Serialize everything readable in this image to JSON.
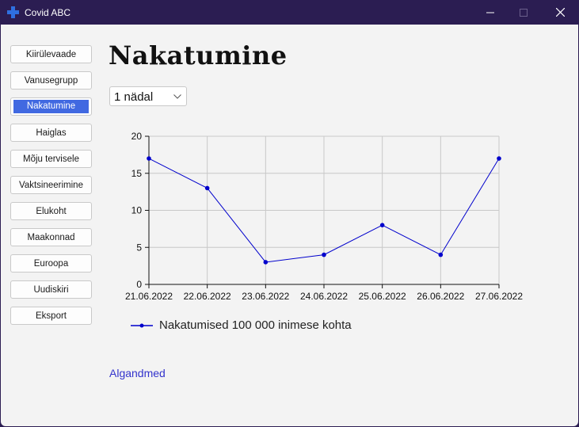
{
  "window": {
    "title": "Covid ABC"
  },
  "nav": {
    "items": [
      {
        "label": "Kiirülevaade"
      },
      {
        "label": "Vanusegrupp"
      },
      {
        "label": "Nakatumine"
      },
      {
        "label": "Haiglas"
      },
      {
        "label": "Mõju tervisele"
      },
      {
        "label": "Vaktsineerimine"
      },
      {
        "label": "Elukoht"
      },
      {
        "label": "Maakonnad"
      },
      {
        "label": "Euroopa"
      },
      {
        "label": "Uudiskiri"
      },
      {
        "label": "Eksport"
      }
    ],
    "active": "Nakatumine"
  },
  "main": {
    "title": "Nakatumine",
    "period_select": {
      "value": "1 nädal"
    },
    "source_link": "Algandmed"
  },
  "colors": {
    "accent": "#4169e1",
    "series": "#0000cc",
    "titlebar": "#2b1d52"
  },
  "chart_data": {
    "type": "line",
    "x": [
      "21.06.2022",
      "22.06.2022",
      "23.06.2022",
      "24.06.2022",
      "25.06.2022",
      "26.06.2022",
      "27.06.2022"
    ],
    "series": [
      {
        "name": "Nakatumised 100 000 inimese kohta",
        "values": [
          17,
          13,
          3,
          4,
          8,
          4,
          17
        ]
      }
    ],
    "ylim": [
      0,
      20
    ],
    "yticks": [
      0,
      5,
      10,
      15,
      20
    ],
    "grid": true,
    "legend": "bottom-left"
  }
}
